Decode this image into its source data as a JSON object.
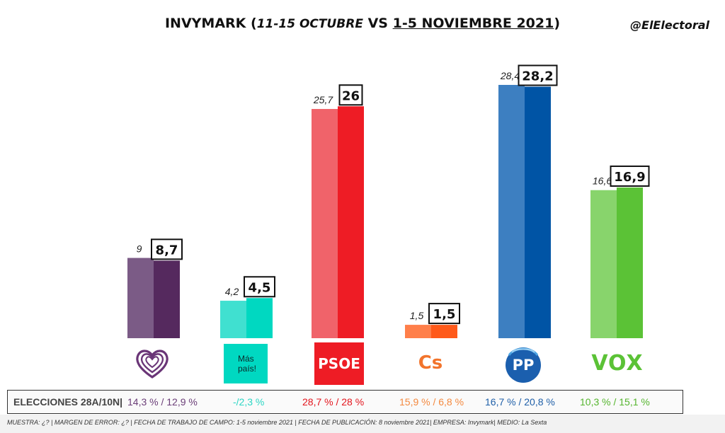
{
  "header": {
    "title_prefix": "INVYMARK (",
    "title_old_period": "11-15 OCTUBRE",
    "title_vs": " VS ",
    "title_new_period": "1-5 NOVIEMBRE 2021",
    "title_suffix": ")",
    "handle": "@ElElectoral"
  },
  "chart_data": {
    "type": "bar",
    "categories": [
      "Unidas Podemos",
      "Más País",
      "PSOE",
      "Cs",
      "PP",
      "VOX"
    ],
    "series": [
      {
        "name": "11-15 OCTUBRE",
        "values": [
          9,
          4.2,
          25.7,
          1.5,
          28.4,
          16.6
        ],
        "labels": [
          "9",
          "4,2",
          "25,7",
          "1,5",
          "28,4",
          "16,6"
        ]
      },
      {
        "name": "1-5 NOVIEMBRE 2021",
        "values": [
          8.7,
          4.5,
          26,
          1.5,
          28.2,
          16.9
        ],
        "labels": [
          "8,7",
          "4,5",
          "26",
          "1,5",
          "28,2",
          "16,9"
        ]
      }
    ],
    "colors_old": [
      "#7b5b86",
      "#40e0d0",
      "#f0636a",
      "#ff7f4a",
      "#3d7fc1",
      "#88d46c"
    ],
    "colors_new": [
      "#55295e",
      "#00d8c1",
      "#ee1c25",
      "#ff5a1a",
      "#0054a5",
      "#5bc236"
    ],
    "ylim": [
      0,
      30
    ],
    "grid": false,
    "legend": "none"
  },
  "parties": {
    "mas_pais_line1": "Más",
    "mas_pais_line2": "país!",
    "psoe": "PSOE",
    "cs": "Cs",
    "pp": "PP",
    "vox": "VOX"
  },
  "results": {
    "label": "ELECCIONES 28A/10N|",
    "values": [
      "14,3 % / 12,9 %",
      "-/2,3 %",
      "28,7  % / 28 %",
      "15,9 % / 6,8 %",
      "16,7 % / 20,8 %",
      "10,3 % / 15,1 %"
    ],
    "colors": [
      "#6b3e78",
      "#2bd6c4",
      "#e3151d",
      "#f4893f",
      "#1f5fa8",
      "#55b52e"
    ]
  },
  "footnote": "MUESTRA: ¿? | MARGEN DE ERROR: ¿? | FECHA DE TRABAJO DE CAMPO: 1-5 noviembre 2021 | FECHA DE PUBLICACIÓN: 8 noviembre 2021| EMPRESA: Invymark| MEDIO: La Sexta"
}
